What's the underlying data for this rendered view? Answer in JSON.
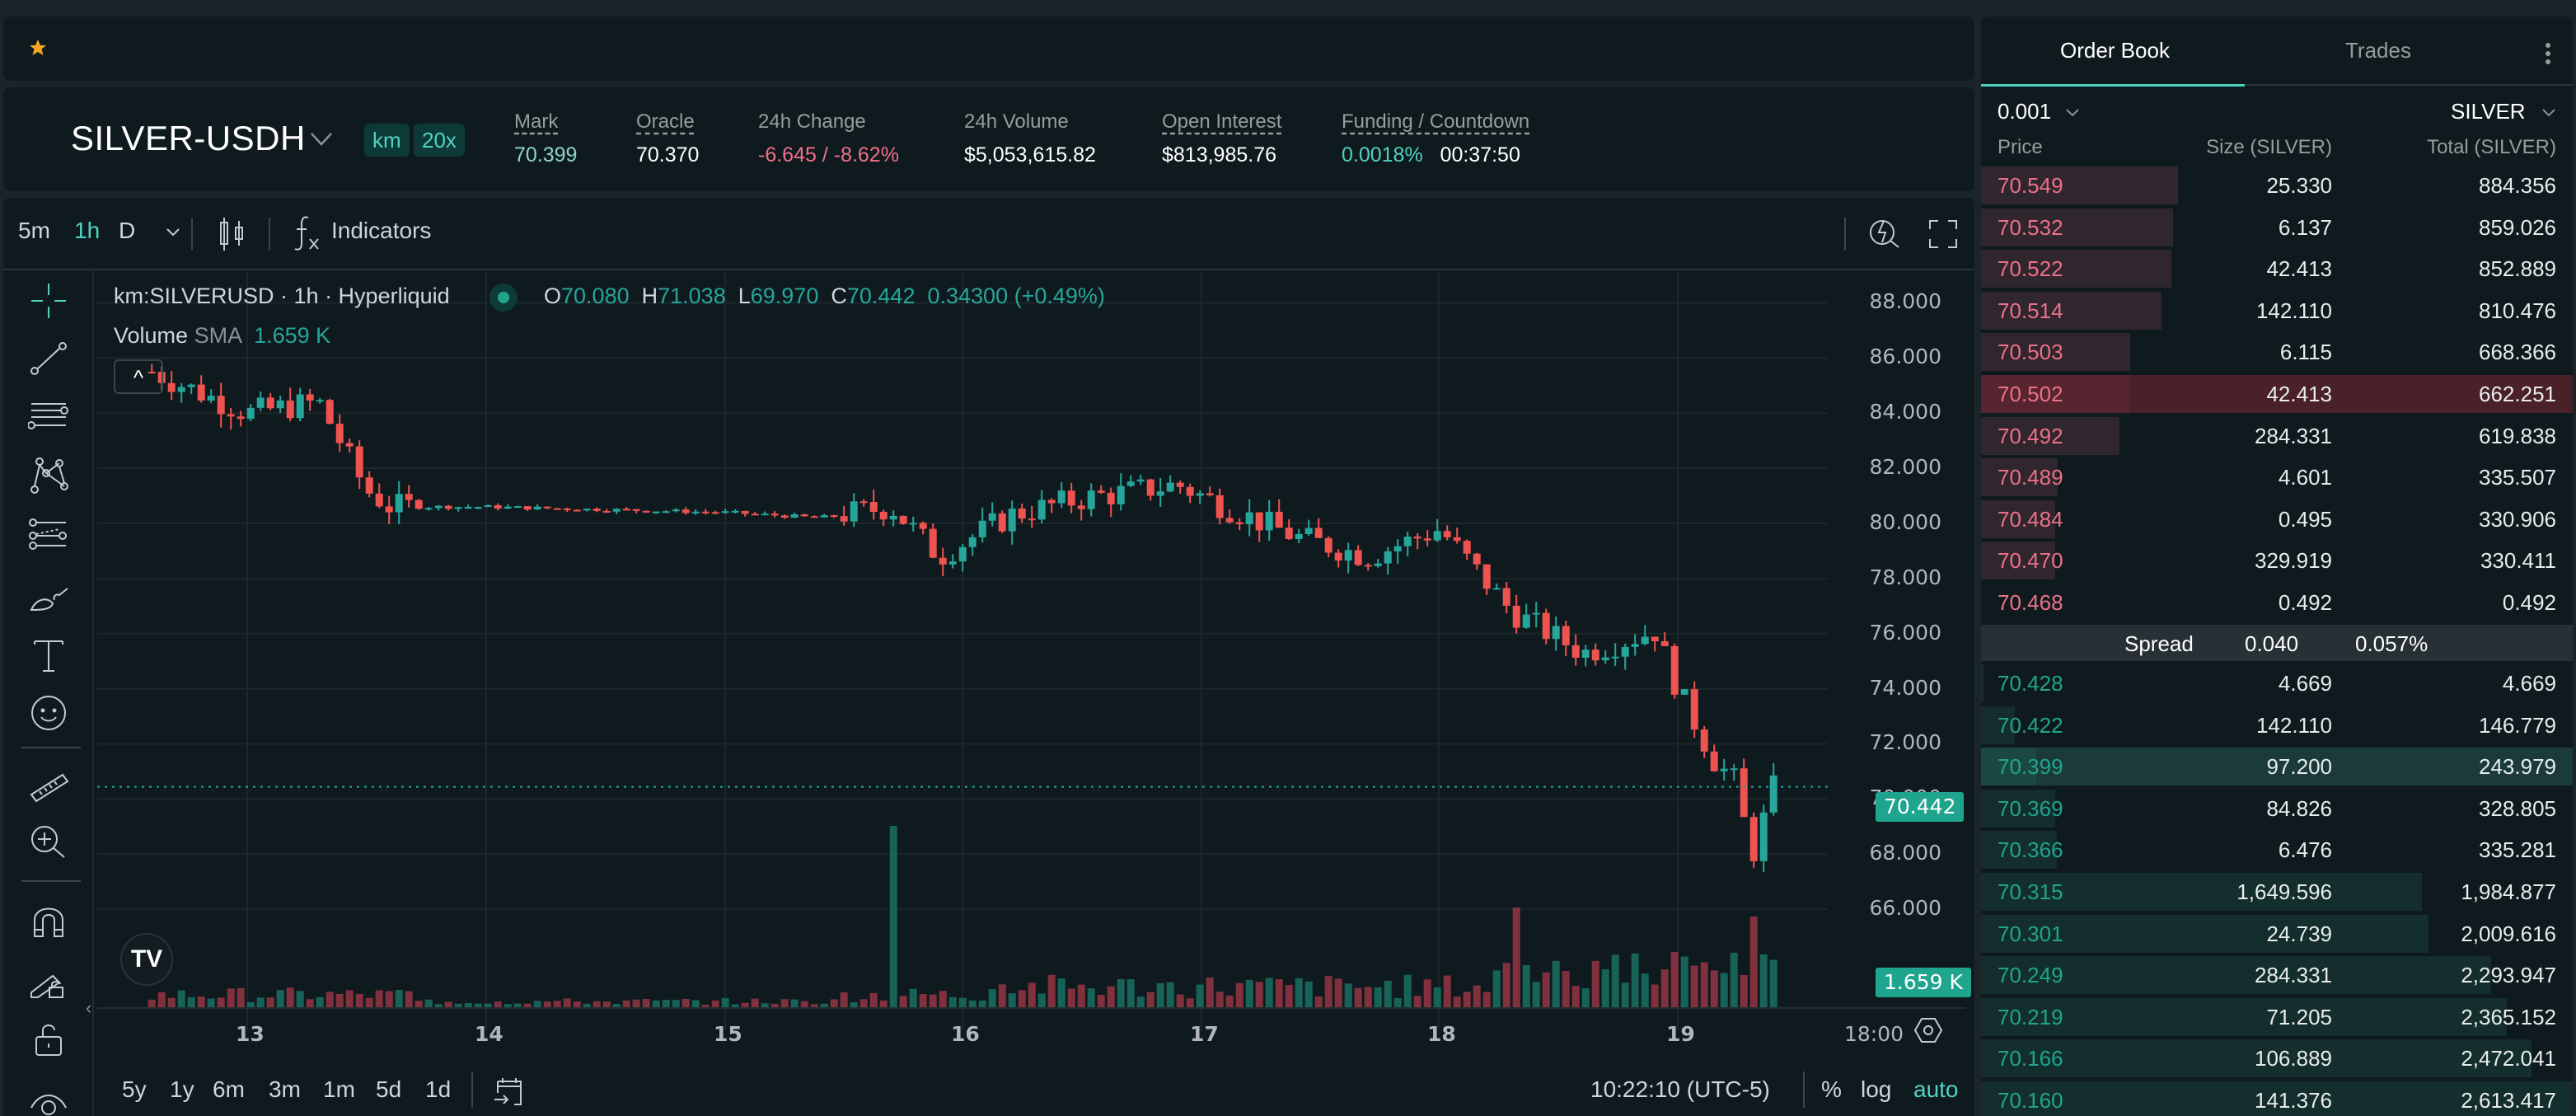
{
  "header": {
    "pair": "SILVER-USDH",
    "badges": [
      "km",
      "20x"
    ],
    "stats": [
      {
        "label": "Mark",
        "value": "70.399",
        "dotted": true,
        "color": "teal"
      },
      {
        "label": "Oracle",
        "value": "70.370",
        "dotted": true,
        "color": "white"
      },
      {
        "label": "24h Change",
        "value": "-6.645 / -8.62%",
        "dotted": false,
        "color": "red"
      },
      {
        "label": "24h Volume",
        "value": "$5,053,615.82",
        "dotted": false,
        "color": "white"
      },
      {
        "label": "Open Interest",
        "value": "$813,985.76",
        "dotted": true,
        "color": "white"
      },
      {
        "label": "Funding / Countdown",
        "value": "0.0018%",
        "value2": "00:37:50",
        "dotted": true,
        "color": "green"
      }
    ]
  },
  "chart_toolbar": {
    "timeframes": [
      "5m",
      "1h",
      "D"
    ],
    "active_timeframe": "1h",
    "indicators_label": "Indicators"
  },
  "chart_legend": {
    "symbol": "km:SILVERUSD · 1h · Hyperliquid",
    "o_label": "O",
    "o": "70.080",
    "h_label": "H",
    "h": "71.038",
    "l_label": "L",
    "l": "69.970",
    "c_label": "C",
    "c": "70.442",
    "change": "0.34300 (+0.49%)",
    "volume_label": "Volume",
    "sma_label": "SMA",
    "volume_value": "1.659 K"
  },
  "chart_data": {
    "type": "candlestick",
    "title": "km:SILVERUSD · 1h · Hyperliquid",
    "ylim": [
      64,
      89
    ],
    "y_ticks": [
      "88.000",
      "86.000",
      "84.000",
      "82.000",
      "80.000",
      "78.000",
      "76.000",
      "74.000",
      "72.000",
      "70.000",
      "68.000",
      "66.000"
    ],
    "x_ticks": [
      "13",
      "14",
      "15",
      "16",
      "17",
      "18",
      "19",
      "18:00"
    ],
    "last_price": "70.442",
    "last_volume": "1.659 K",
    "approx_close_path": [
      {
        "day": "12.6",
        "price": 85.5
      },
      {
        "day": "13.0",
        "price": 84.0
      },
      {
        "day": "13.3",
        "price": 84.4
      },
      {
        "day": "13.5",
        "price": 81.2
      },
      {
        "day": "13.6",
        "price": 80.6
      },
      {
        "day": "14.0",
        "price": 80.6
      },
      {
        "day": "14.5",
        "price": 80.5
      },
      {
        "day": "15.0",
        "price": 80.4
      },
      {
        "day": "15.4",
        "price": 80.2
      },
      {
        "day": "15.7",
        "price": 80.6
      },
      {
        "day": "15.9",
        "price": 78.8
      },
      {
        "day": "16.2",
        "price": 80.3
      },
      {
        "day": "16.5",
        "price": 80.9
      },
      {
        "day": "16.9",
        "price": 81.4
      },
      {
        "day": "17.1",
        "price": 80.6
      },
      {
        "day": "17.4",
        "price": 79.5
      },
      {
        "day": "17.7",
        "price": 78.8
      },
      {
        "day": "18.0",
        "price": 79.8
      },
      {
        "day": "18.3",
        "price": 76.8
      },
      {
        "day": "18.6",
        "price": 75.3
      },
      {
        "day": "18.9",
        "price": 76.1
      },
      {
        "day": "19.0",
        "price": 73.9
      },
      {
        "day": "19.15",
        "price": 71.4
      },
      {
        "day": "19.25",
        "price": 70.5
      },
      {
        "day": "19.3",
        "price": 67.7
      },
      {
        "day": "19.4",
        "price": 70.442
      }
    ],
    "volume_spikes": [
      {
        "day": "15.7",
        "rel": 1.0
      },
      {
        "day": "18.3",
        "rel": 0.55
      },
      {
        "day": "19.3",
        "rel": 0.5
      }
    ]
  },
  "bottom_bar": {
    "ranges": [
      "5y",
      "1y",
      "6m",
      "3m",
      "1m",
      "5d",
      "1d"
    ],
    "clock": "10:22:10 (UTC-5)",
    "percent": "%",
    "log": "log",
    "auto": "auto"
  },
  "orderbook": {
    "tabs": [
      "Order Book",
      "Trades"
    ],
    "active_tab": "Order Book",
    "precision": "0.001",
    "unit": "SILVER",
    "columns": [
      "Price",
      "Size (SILVER)",
      "Total (SILVER)"
    ],
    "asks": [
      {
        "price": "70.549",
        "size": "25.330",
        "total": "884.356",
        "depth": 0.333
      },
      {
        "price": "70.532",
        "size": "6.137",
        "total": "859.026",
        "depth": 0.325
      },
      {
        "price": "70.522",
        "size": "42.413",
        "total": "852.889",
        "depth": 0.322
      },
      {
        "price": "70.514",
        "size": "142.110",
        "total": "810.476",
        "depth": 0.305
      },
      {
        "price": "70.503",
        "size": "6.115",
        "total": "668.366",
        "depth": 0.252
      },
      {
        "price": "70.502",
        "size": "42.413",
        "total": "662.251",
        "depth": 0.25,
        "highlight": true
      },
      {
        "price": "70.492",
        "size": "284.331",
        "total": "619.838",
        "depth": 0.234
      },
      {
        "price": "70.489",
        "size": "4.601",
        "total": "335.507",
        "depth": 0.129
      },
      {
        "price": "70.484",
        "size": "0.495",
        "total": "330.906",
        "depth": 0.126
      },
      {
        "price": "70.470",
        "size": "329.919",
        "total": "330.411",
        "depth": 0.126
      },
      {
        "price": "70.468",
        "size": "0.492",
        "total": "0.492",
        "depth": 0.0
      }
    ],
    "spread": {
      "label": "Spread",
      "value": "0.040",
      "pct": "0.057%"
    },
    "bids": [
      {
        "price": "70.428",
        "size": "4.669",
        "total": "4.669",
        "depth": 0.004
      },
      {
        "price": "70.422",
        "size": "142.110",
        "total": "146.779",
        "depth": 0.057
      },
      {
        "price": "70.399",
        "size": "97.200",
        "total": "243.979",
        "depth": 0.093,
        "highlight": true
      },
      {
        "price": "70.369",
        "size": "84.826",
        "total": "328.805",
        "depth": 0.126
      },
      {
        "price": "70.366",
        "size": "6.476",
        "total": "335.281",
        "depth": 0.128
      },
      {
        "price": "70.315",
        "size": "1,649.596",
        "total": "1,984.877",
        "depth": 0.745
      },
      {
        "price": "70.301",
        "size": "24.739",
        "total": "2,009.616",
        "depth": 0.756
      },
      {
        "price": "70.249",
        "size": "284.331",
        "total": "2,293.947",
        "depth": 0.862
      },
      {
        "price": "70.219",
        "size": "71.205",
        "total": "2,365.152",
        "depth": 0.889
      },
      {
        "price": "70.166",
        "size": "106.889",
        "total": "2,472.041",
        "depth": 0.93
      },
      {
        "price": "70.160",
        "size": "141.376",
        "total": "2,613.417",
        "depth": 1.0
      }
    ]
  },
  "colors": {
    "up": "#26a69a",
    "down": "#ef5350",
    "accent": "#50d2c1",
    "ask_text": "#ed7088",
    "bid_text": "#1fa58d",
    "background": "#0f1a1f"
  }
}
